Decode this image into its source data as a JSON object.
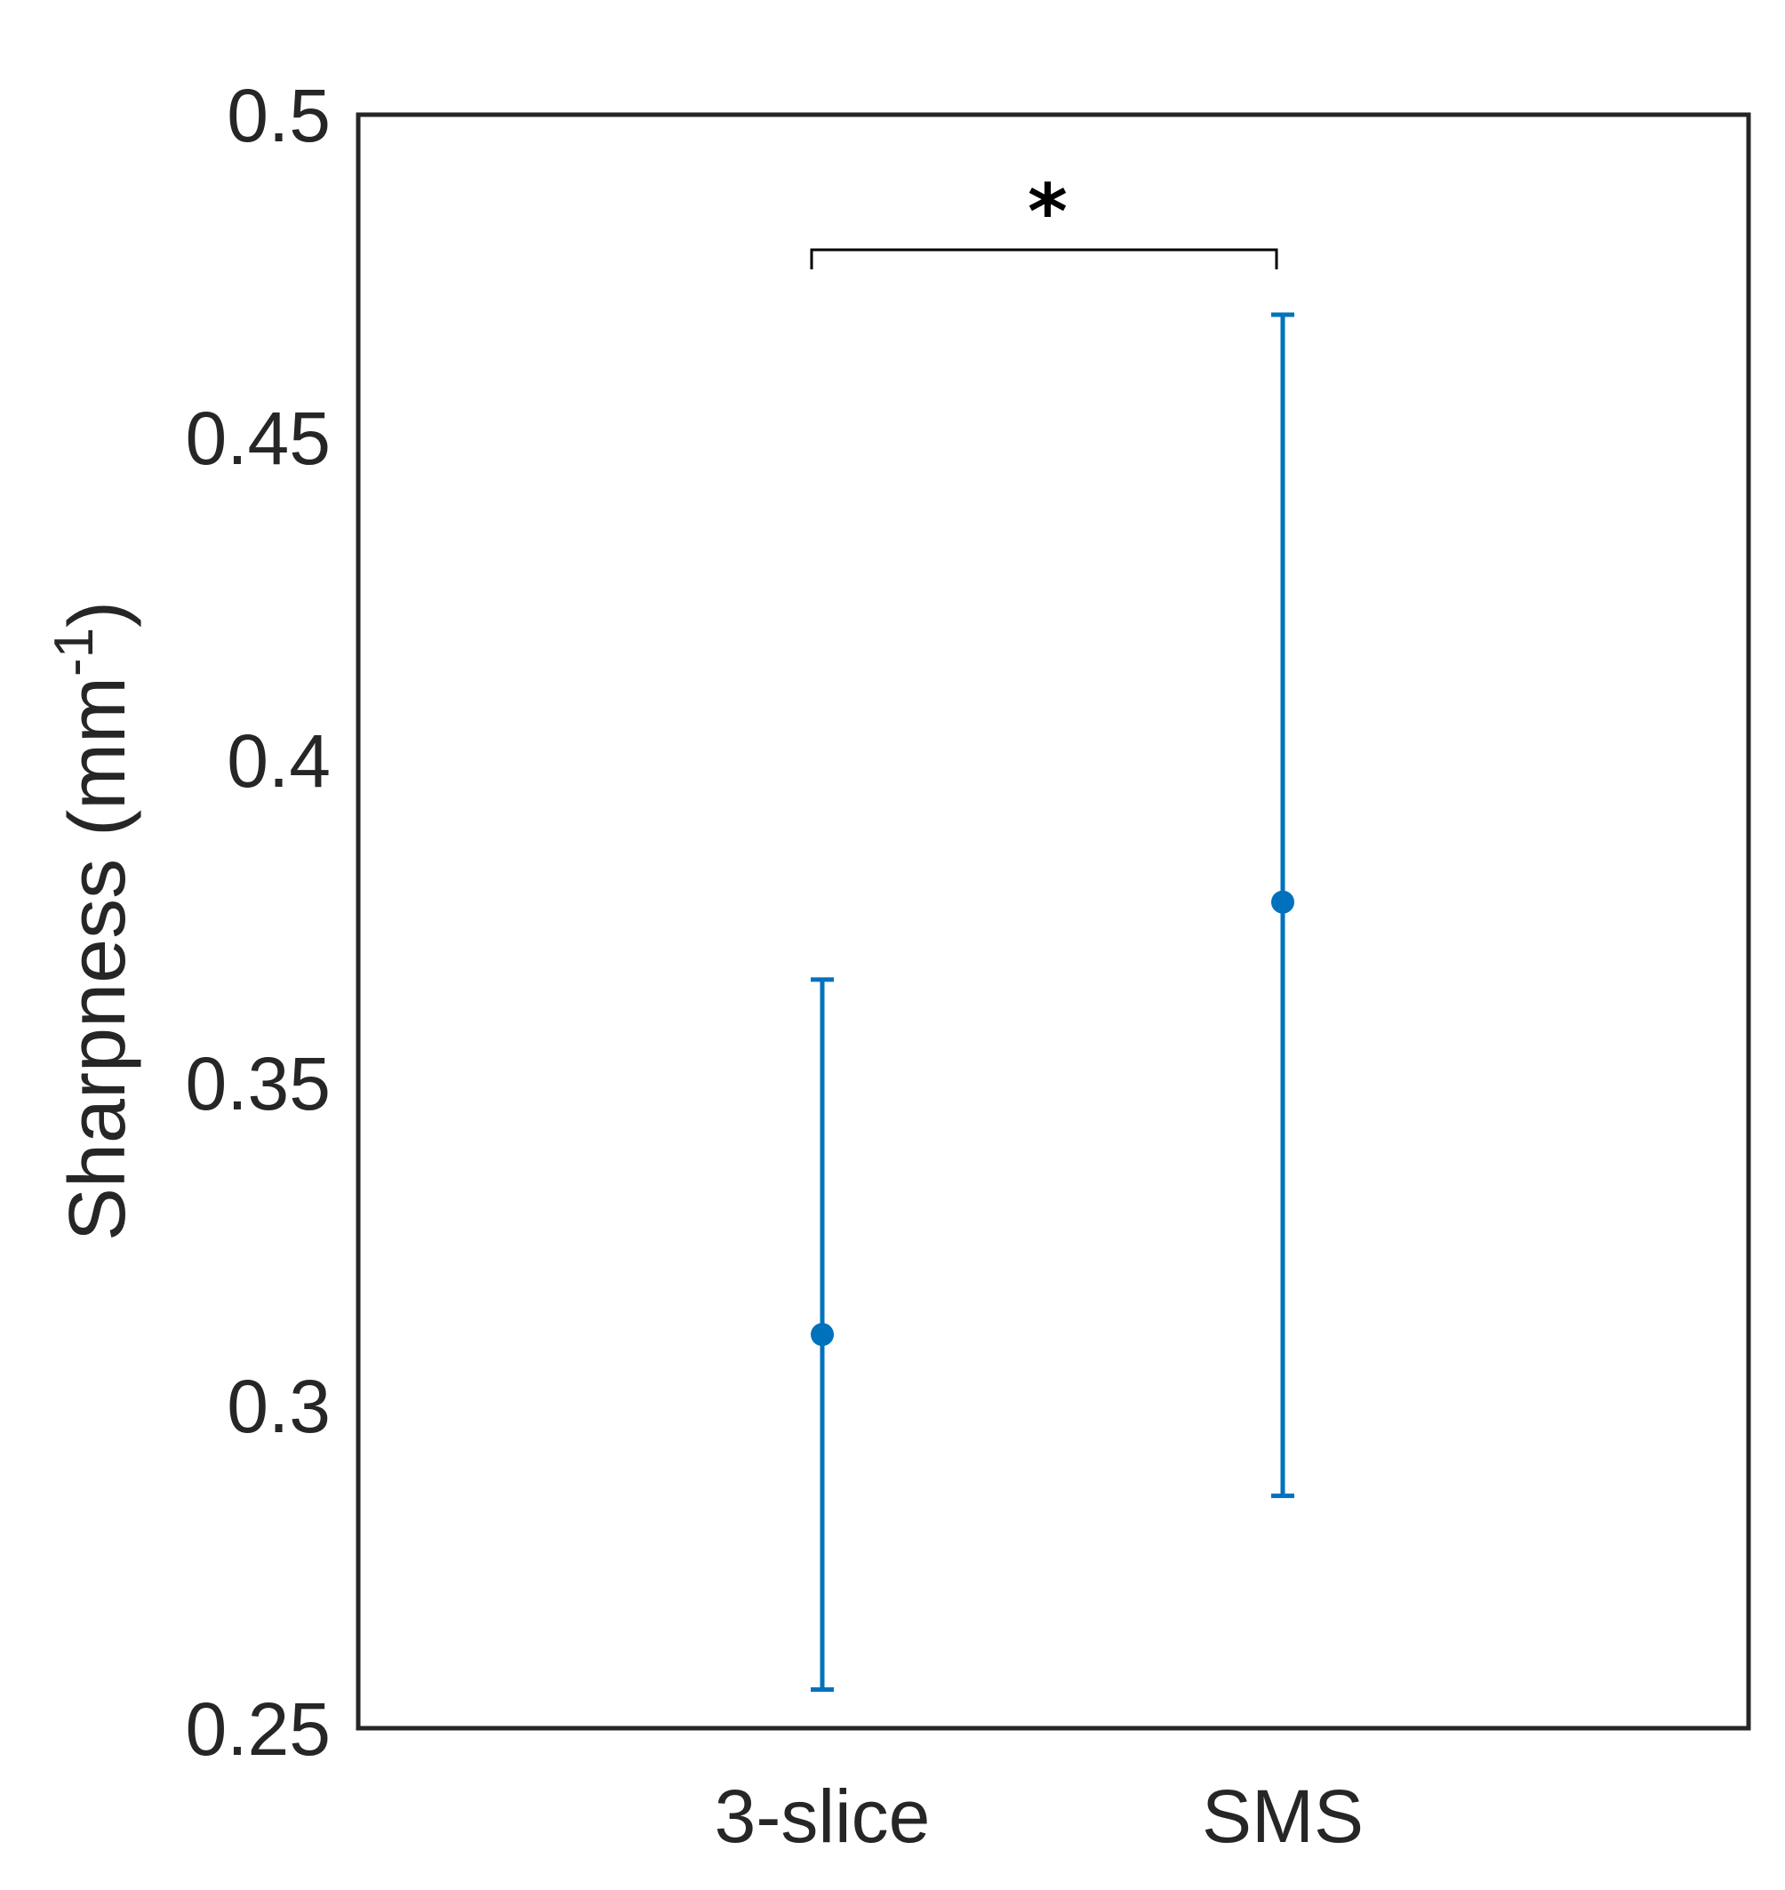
{
  "chart_data": {
    "type": "errorbar",
    "categories": [
      "3-slice",
      "SMS"
    ],
    "series": [
      {
        "values": [
          0.311,
          0.378
        ],
        "lower": [
          0.256,
          0.286
        ],
        "upper": [
          0.366,
          0.469
        ]
      }
    ],
    "xlabel": "",
    "ylabel": "Sharpness (mm",
    "ylabel_superscript": "-1",
    "ylabel_close": ")",
    "ylim": [
      0.25,
      0.5
    ],
    "yticks": [
      "0.25",
      "0.3",
      "0.35",
      "0.4",
      "0.45",
      "0.5"
    ],
    "ytick_values": [
      0.25,
      0.3,
      0.35,
      0.4,
      0.45,
      0.5
    ],
    "annotation": {
      "text": "*",
      "between": [
        "3-slice",
        "SMS"
      ]
    },
    "grid": false,
    "legend": "none",
    "colors": {
      "series": "#0072BD",
      "axes": "#262626"
    }
  }
}
